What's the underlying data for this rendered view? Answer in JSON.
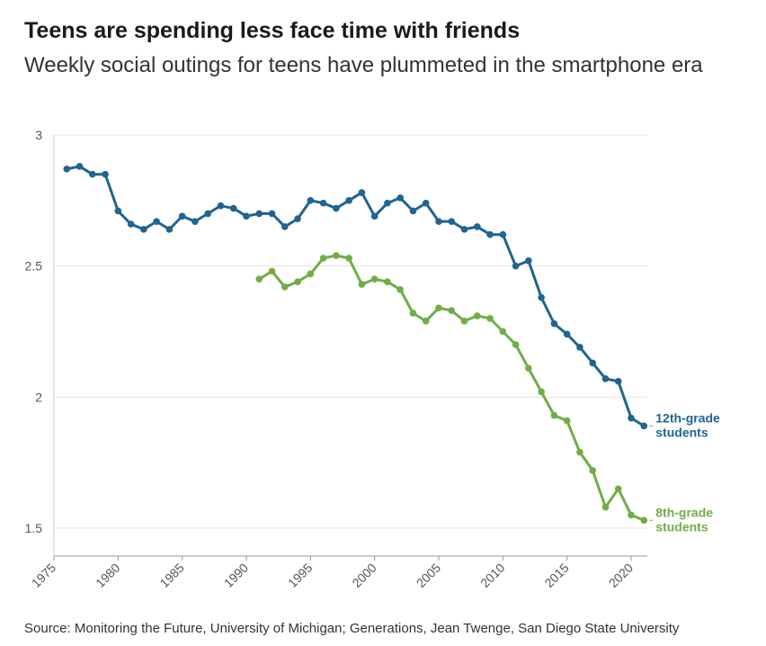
{
  "title": "Teens are spending less face time with friends",
  "subtitle": "Weekly social outings for teens have plummeted in the smartphone era",
  "source": "Source: Monitoring the Future, University of Michigan; Generations, Jean Twenge, San Diego State University",
  "chart_data": {
    "type": "line",
    "title": "Teens are spending less face time with friends",
    "subtitle": "Weekly social outings for teens have plummeted in the smartphone era",
    "xlabel": "",
    "ylabel": "",
    "xlim": [
      1975,
      2021
    ],
    "ylim": [
      1.4,
      3.0
    ],
    "x_ticks": [
      1975,
      1980,
      1985,
      1990,
      1995,
      2000,
      2005,
      2010,
      2015,
      2020
    ],
    "y_ticks": [
      1.5,
      2,
      2.5,
      3
    ],
    "y_tick_labels": [
      "1.5",
      "2",
      "2.5",
      "3"
    ],
    "grid": "horizontal",
    "legend": "direct labels at right end of lines",
    "series": [
      {
        "name": "12th-grade students",
        "label_lines": [
          "12th-grade",
          "students"
        ],
        "color": "#1f6590",
        "x": [
          1976,
          1977,
          1978,
          1979,
          1980,
          1981,
          1982,
          1983,
          1984,
          1985,
          1986,
          1987,
          1988,
          1989,
          1990,
          1991,
          1992,
          1993,
          1994,
          1995,
          1996,
          1997,
          1998,
          1999,
          2000,
          2001,
          2002,
          2003,
          2004,
          2005,
          2006,
          2007,
          2008,
          2009,
          2010,
          2011,
          2012,
          2013,
          2014,
          2015,
          2016,
          2017,
          2018,
          2019,
          2020,
          2021
        ],
        "values": [
          2.87,
          2.88,
          2.85,
          2.85,
          2.71,
          2.66,
          2.64,
          2.67,
          2.64,
          2.69,
          2.67,
          2.7,
          2.73,
          2.72,
          2.69,
          2.7,
          2.7,
          2.65,
          2.68,
          2.75,
          2.74,
          2.72,
          2.75,
          2.78,
          2.69,
          2.74,
          2.76,
          2.71,
          2.74,
          2.67,
          2.67,
          2.64,
          2.65,
          2.62,
          2.62,
          2.5,
          2.52,
          2.38,
          2.28,
          2.24,
          2.19,
          2.13,
          2.07,
          2.06,
          1.92,
          1.89
        ]
      },
      {
        "name": "8th-grade students",
        "label_lines": [
          "8th-grade",
          "students"
        ],
        "color": "#71ad47",
        "x": [
          1991,
          1992,
          1993,
          1994,
          1995,
          1996,
          1997,
          1998,
          1999,
          2000,
          2001,
          2002,
          2003,
          2004,
          2005,
          2006,
          2007,
          2008,
          2009,
          2010,
          2011,
          2012,
          2013,
          2014,
          2015,
          2016,
          2017,
          2018,
          2019,
          2020,
          2021
        ],
        "values": [
          2.45,
          2.48,
          2.42,
          2.44,
          2.47,
          2.53,
          2.54,
          2.53,
          2.43,
          2.45,
          2.44,
          2.41,
          2.32,
          2.29,
          2.34,
          2.33,
          2.29,
          2.31,
          2.3,
          2.25,
          2.2,
          2.11,
          2.02,
          1.93,
          1.91,
          1.79,
          1.72,
          1.58,
          1.65,
          1.55,
          1.53
        ]
      }
    ]
  }
}
